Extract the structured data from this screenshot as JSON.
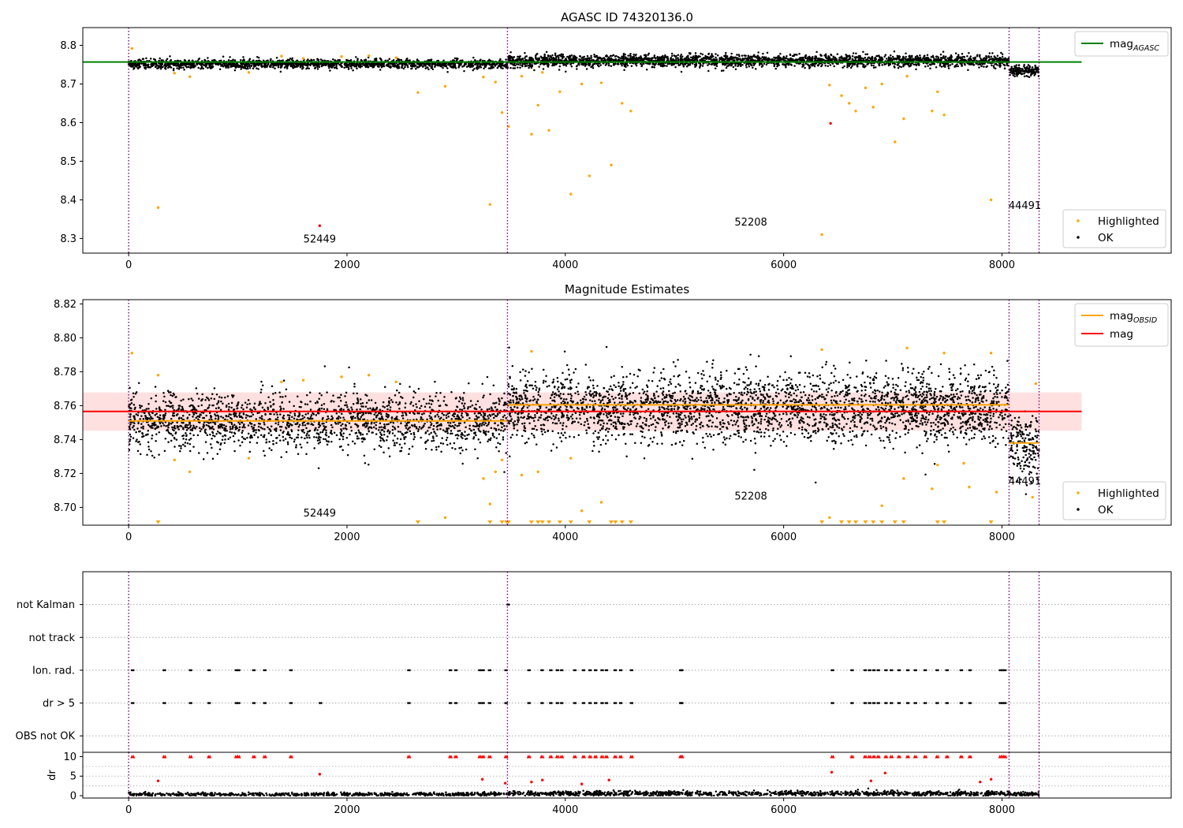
{
  "chart_data": [
    {
      "id": "agasc",
      "type": "scatter",
      "title": "AGASC ID 74320136.0",
      "xlim": [
        -420,
        9550
      ],
      "ylim": [
        8.262,
        8.846
      ],
      "xticks": [
        0,
        2000,
        4000,
        6000,
        8000
      ],
      "yticks": [
        8.3,
        8.4,
        8.5,
        8.6,
        8.7,
        8.8
      ],
      "ytick_decimals": 1,
      "obs_boundaries": [
        0,
        3470,
        8065,
        8340
      ],
      "obsids": [
        {
          "label": "52449",
          "x": 1750,
          "y": 8.29
        },
        {
          "label": "52208",
          "x": 5700,
          "y": 8.333
        },
        {
          "label": "44491",
          "x": 8210,
          "y": 8.376
        }
      ],
      "lines": [
        {
          "label": "mag",
          "sub": "AGASC",
          "color": "#008000",
          "y": 8.757,
          "x": [
            -420,
            8730
          ]
        }
      ],
      "bands": [],
      "legend_lines": [
        {
          "label": "mag",
          "sub": "AGASC",
          "color": "#008000"
        }
      ],
      "legend_points": [
        {
          "label": "Highlighted",
          "color": "#ffa500"
        },
        {
          "label": "OK",
          "color": "#000000"
        }
      ],
      "ok_segments": [
        {
          "x0": 0,
          "x1": 3470,
          "center": 8.752,
          "spread": 0.006,
          "n": 1700
        },
        {
          "x0": 3470,
          "x1": 8065,
          "center": 8.76,
          "spread": 0.008,
          "n": 2600
        },
        {
          "x0": 8065,
          "x1": 8340,
          "center": 8.735,
          "spread": 0.007,
          "n": 160
        }
      ],
      "highlighted": {
        "x": [
          30,
          270,
          420,
          560,
          1100,
          1400,
          1600,
          1950,
          2200,
          2450,
          2650,
          2900,
          3250,
          3310,
          3360,
          3420,
          3480,
          3600,
          3690,
          3750,
          3790,
          3850,
          3950,
          4050,
          4150,
          4220,
          4330,
          4420,
          4520,
          4600,
          6350,
          6420,
          6530,
          6600,
          6660,
          6750,
          6820,
          6900,
          7020,
          7100,
          7130,
          7360,
          7410,
          7470,
          7900
        ],
        "y": [
          8.792,
          8.38,
          8.728,
          8.719,
          8.73,
          8.772,
          8.766,
          8.771,
          8.773,
          8.768,
          8.678,
          8.694,
          8.718,
          8.388,
          8.705,
          8.626,
          8.59,
          8.72,
          8.57,
          8.645,
          8.73,
          8.58,
          8.68,
          8.415,
          8.7,
          8.462,
          8.703,
          8.49,
          8.65,
          8.63,
          8.31,
          8.697,
          8.67,
          8.65,
          8.63,
          8.69,
          8.64,
          8.7,
          8.55,
          8.61,
          8.72,
          8.63,
          8.68,
          8.62,
          8.4
        ]
      },
      "red_points": {
        "x": [
          1750,
          6430
        ],
        "y": [
          8.333,
          8.598
        ]
      }
    },
    {
      "id": "mag",
      "type": "scatter",
      "title": "Magnitude Estimates",
      "xlim": [
        -420,
        9550
      ],
      "ylim": [
        8.6895,
        8.8225
      ],
      "xticks": [
        0,
        2000,
        4000,
        6000,
        8000
      ],
      "yticks": [
        8.7,
        8.72,
        8.74,
        8.76,
        8.78,
        8.8,
        8.82
      ],
      "ytick_decimals": 2,
      "obs_boundaries": [
        0,
        3470,
        8065,
        8340
      ],
      "obsids": [
        {
          "label": "52449",
          "x": 1750,
          "y": 8.6945
        },
        {
          "label": "52208",
          "x": 5700,
          "y": 8.7045
        },
        {
          "label": "44491",
          "x": 8210,
          "y": 8.7135
        }
      ],
      "bands": [
        {
          "x0": -420,
          "x1": 8730,
          "y0": 8.7452,
          "y1": 8.7678,
          "color": "#ff0000",
          "opacity": 0.12
        }
      ],
      "lines": [
        {
          "label": "mag",
          "sub": "OBSID",
          "color": "#ffa500",
          "y": 8.751,
          "x": [
            0,
            3470
          ]
        },
        {
          "label": "mag",
          "sub": "OBSID",
          "color": "#ffa500",
          "y": 8.7605,
          "x": [
            3470,
            8065
          ]
        },
        {
          "label": "mag",
          "sub": "OBSID",
          "color": "#ffa500",
          "y": 8.738,
          "x": [
            8065,
            8340
          ]
        },
        {
          "label": "mag",
          "sub": "",
          "color": "#ff0000",
          "y": 8.7566,
          "x": [
            -420,
            8730
          ]
        }
      ],
      "legend_lines": [
        {
          "label": "mag",
          "sub": "OBSID",
          "color": "#ffa500"
        },
        {
          "label": "mag",
          "sub": "",
          "color": "#ff0000"
        }
      ],
      "legend_points": [
        {
          "label": "Highlighted",
          "color": "#ffa500"
        },
        {
          "label": "OK",
          "color": "#000000"
        }
      ],
      "ok_segments": [
        {
          "x0": 0,
          "x1": 3470,
          "center": 8.751,
          "spread": 0.0085,
          "n": 1800
        },
        {
          "x0": 3470,
          "x1": 8065,
          "center": 8.759,
          "spread": 0.01,
          "n": 2900
        },
        {
          "x0": 8065,
          "x1": 8340,
          "center": 8.736,
          "spread": 0.009,
          "n": 180
        }
      ],
      "highlighted": {
        "x": [
          30,
          270,
          420,
          560,
          1100,
          1400,
          1600,
          1950,
          2200,
          2450,
          2900,
          3250,
          3310,
          3360,
          3420,
          3600,
          3690,
          3750,
          4050,
          4150,
          4330,
          6350,
          6420,
          6900,
          7100,
          7130,
          7360,
          7410,
          7470,
          7650,
          7700,
          7900,
          7950,
          8280,
          8310
        ],
        "y": [
          8.791,
          8.778,
          8.728,
          8.721,
          8.729,
          8.774,
          8.775,
          8.777,
          8.778,
          8.774,
          8.694,
          8.717,
          8.702,
          8.721,
          8.728,
          8.719,
          8.792,
          8.721,
          8.729,
          8.698,
          8.703,
          8.793,
          8.694,
          8.701,
          8.717,
          8.794,
          8.711,
          8.725,
          8.791,
          8.726,
          8.712,
          8.791,
          8.709,
          8.706,
          8.773
        ]
      },
      "low_markers": [
        270,
        2650,
        3310,
        3420,
        3460,
        3480,
        3690,
        3750,
        3790,
        3850,
        3950,
        4050,
        4220,
        4420,
        4460,
        4520,
        4600,
        6350,
        6530,
        6600,
        6660,
        6750,
        6820,
        6900,
        7020,
        7100,
        7410,
        7470,
        7900
      ]
    },
    {
      "id": "flags",
      "type": "scatter",
      "title": "",
      "xlim": [
        -420,
        9550
      ],
      "ylim": [
        -0.5,
        5.0
      ],
      "categories": [
        "OBS not OK",
        "dr > 5",
        "Ion. rad.",
        "not track",
        "not Kalman"
      ],
      "obs_boundaries": [
        0,
        3470,
        8065,
        8340
      ],
      "flag_rows": [
        {
          "row": 1,
          "x": [
            30,
            320,
            560,
            730,
            980,
            1000,
            1140,
            1240,
            1480,
            1750,
            2560,
            2940,
            2990,
            3210,
            3240,
            3300,
            3450,
            3660,
            3780,
            3860,
            3920,
            3960,
            4080,
            4160,
            4220,
            4270,
            4330,
            4370,
            4450,
            4500,
            4600,
            5050,
            5060,
            6440,
            6620,
            6740,
            6780,
            6820,
            6860,
            6930,
            6980,
            7050,
            7130,
            7200,
            7290,
            7400,
            7490,
            7620,
            7700,
            7980,
            8000,
            8020
          ]
        },
        {
          "row": 2,
          "x": [
            30,
            320,
            560,
            730,
            980,
            1000,
            1140,
            1240,
            1480,
            2560,
            2940,
            2990,
            3210,
            3240,
            3300,
            3450,
            3660,
            3780,
            3860,
            3920,
            3960,
            4080,
            4160,
            4220,
            4270,
            4330,
            4370,
            4450,
            4500,
            4600,
            5050,
            5060,
            6440,
            6620,
            6740,
            6780,
            6820,
            6860,
            6930,
            6980,
            7050,
            7130,
            7200,
            7290,
            7400,
            7490,
            7620,
            7700,
            7980,
            8000,
            8020
          ]
        },
        {
          "row": 4,
          "x": [
            3470
          ]
        }
      ]
    },
    {
      "id": "dr",
      "type": "scatter",
      "title": "",
      "ylabel": "dr",
      "xlim": [
        -420,
        9550
      ],
      "ylim": [
        -0.6,
        11.1
      ],
      "xticks": [
        0,
        2000,
        4000,
        6000,
        8000
      ],
      "yticks": [
        0,
        5,
        10
      ],
      "ytick_decimals": 0,
      "obs_boundaries": [
        0,
        3470,
        8065,
        8340
      ],
      "clip": 10,
      "red_x": [
        30,
        320,
        560,
        730,
        980,
        1000,
        1140,
        1240,
        1480,
        2560,
        2940,
        2990,
        3210,
        3240,
        3300,
        3450,
        3660,
        3780,
        3860,
        3920,
        3960,
        4080,
        4160,
        4220,
        4270,
        4330,
        4370,
        4450,
        4500,
        4600,
        5050,
        5060,
        6440,
        6620,
        6740,
        6780,
        6820,
        6860,
        6930,
        6980,
        7050,
        7130,
        7200,
        7290,
        7400,
        7490,
        7620,
        7700,
        7980,
        8000,
        8020
      ],
      "red_points": {
        "x": [
          270,
          1750,
          3240,
          3450,
          3690,
          3790,
          4150,
          4400,
          6440,
          6800,
          6930,
          7800,
          7900
        ],
        "y": [
          3.8,
          5.5,
          4.2,
          3.2,
          3.5,
          4.0,
          3.0,
          4.0,
          6.0,
          3.8,
          5.8,
          3.5,
          4.2
        ]
      },
      "ok_segments": [
        {
          "x0": 0,
          "x1": 3470,
          "center": 0.35,
          "spread": 0.25,
          "n": 700
        },
        {
          "x0": 3470,
          "x1": 8065,
          "center": 0.55,
          "spread": 0.35,
          "n": 1100
        },
        {
          "x0": 8065,
          "x1": 8340,
          "center": 0.4,
          "spread": 0.3,
          "n": 80
        }
      ]
    }
  ]
}
